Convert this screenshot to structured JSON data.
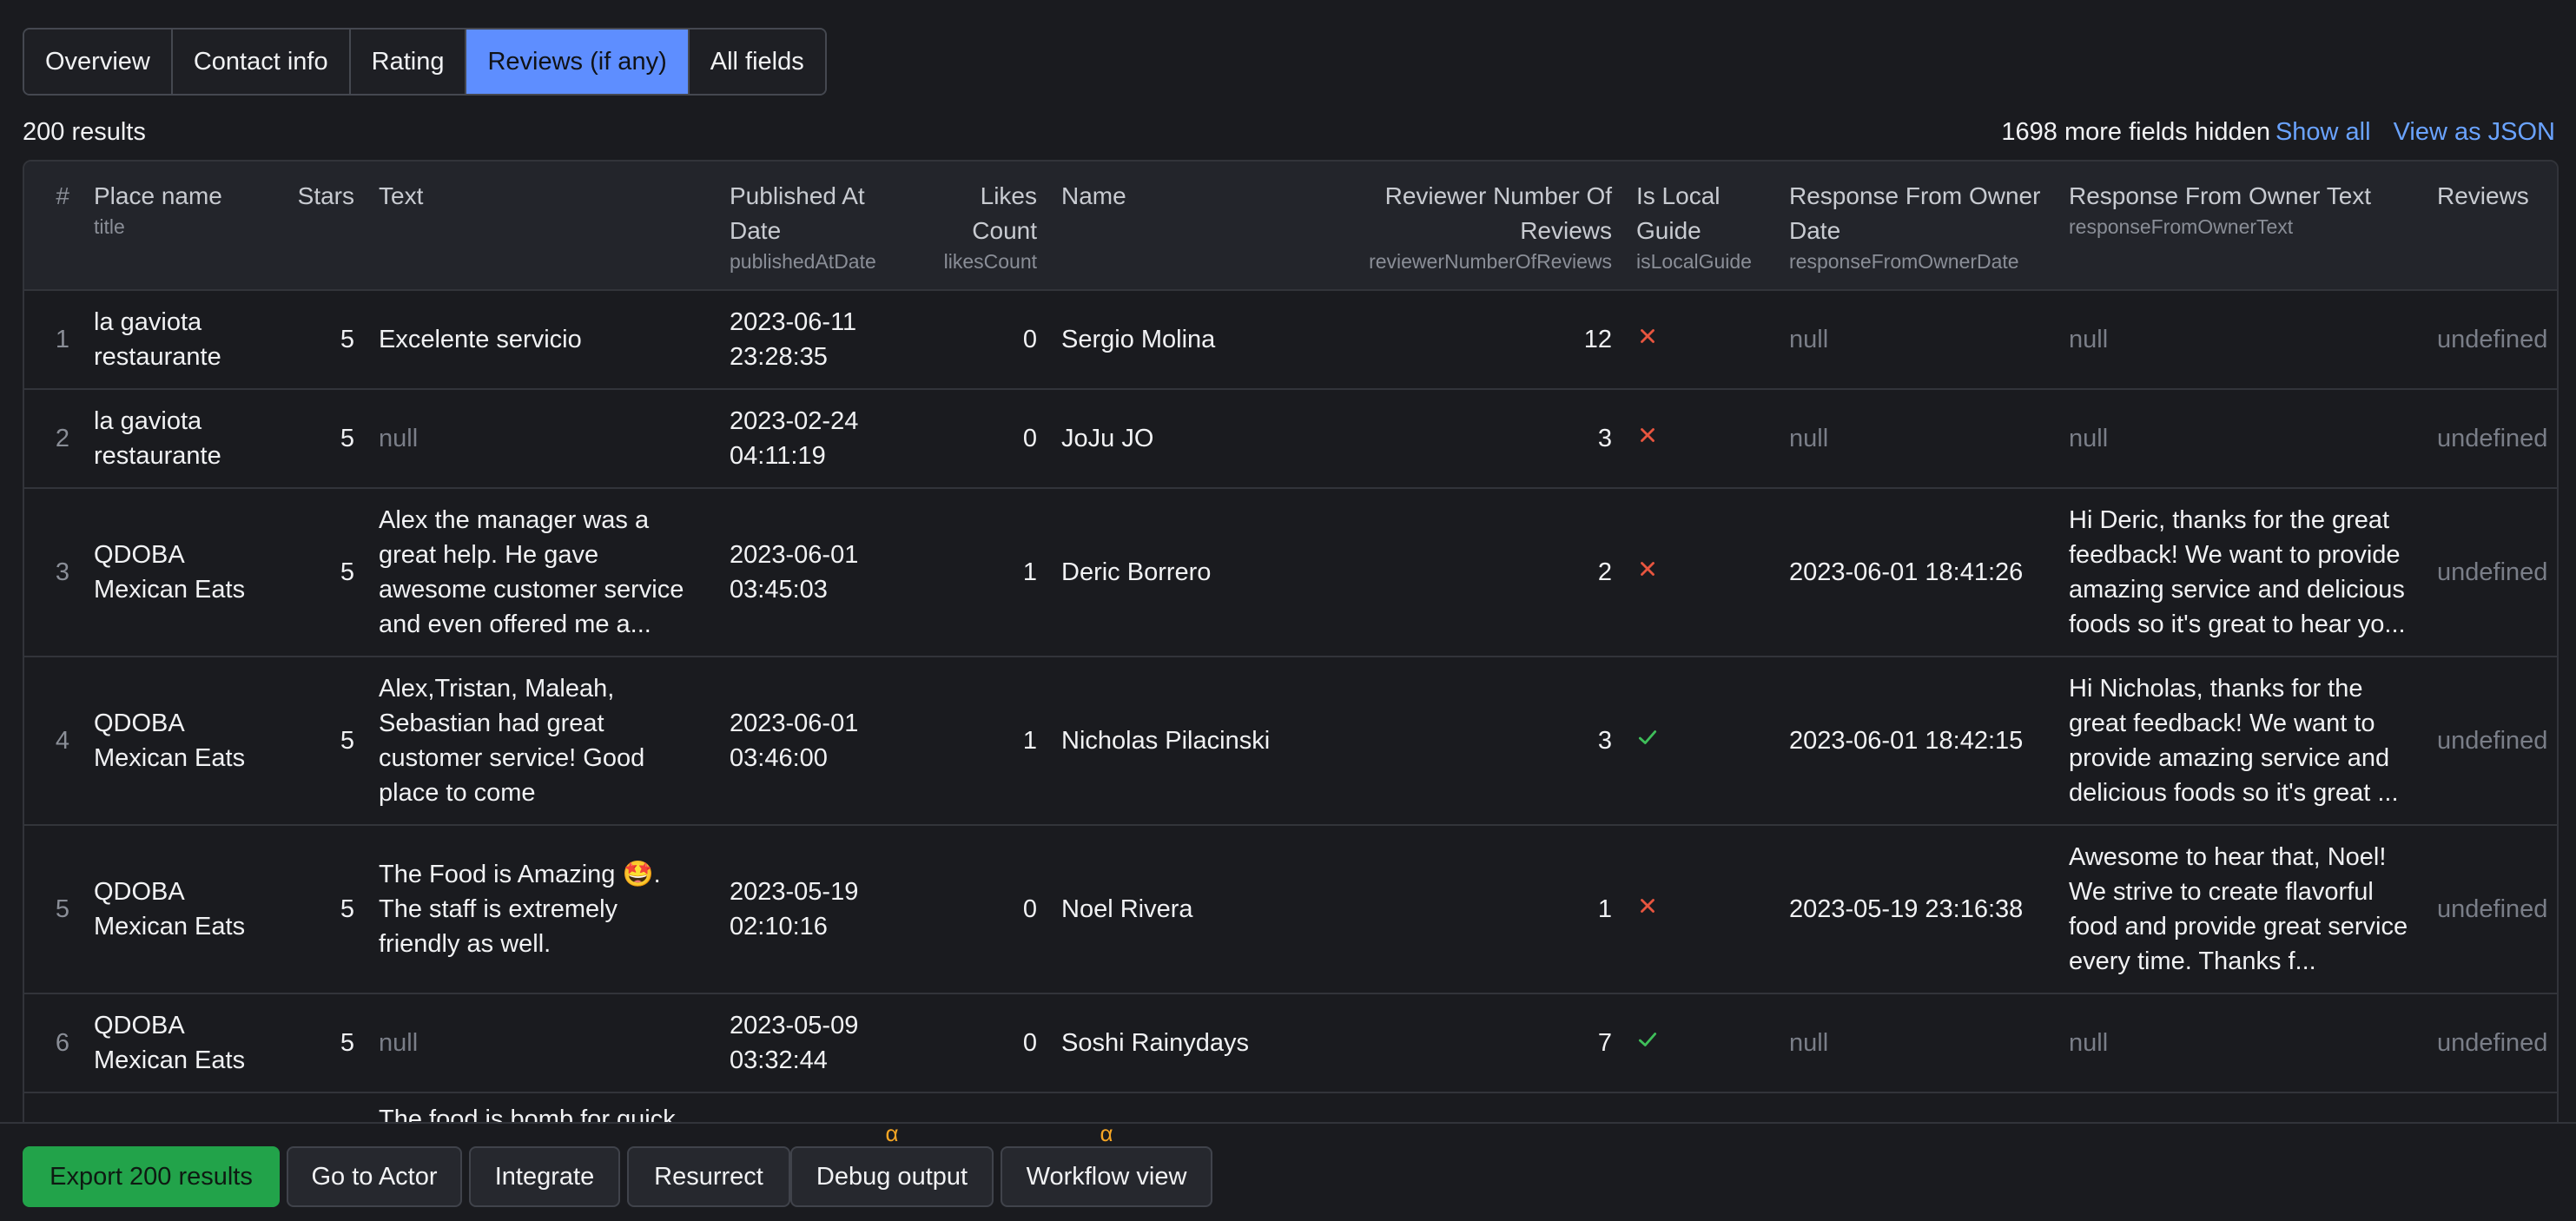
{
  "tabs": [
    {
      "label": "Overview"
    },
    {
      "label": "Contact info"
    },
    {
      "label": "Rating"
    },
    {
      "label": "Reviews (if any)"
    },
    {
      "label": "All fields"
    }
  ],
  "results_label": "200 results",
  "hidden": {
    "text": "1698 more fields hidden",
    "show_all": "Show all",
    "view_json": "View as JSON"
  },
  "columns": {
    "index": {
      "label": "#"
    },
    "place": {
      "label": "Place name",
      "sub": "title"
    },
    "stars": {
      "label": "Stars"
    },
    "text": {
      "label": "Text"
    },
    "published": {
      "label": "Published At Date",
      "sub": "publishedAtDate"
    },
    "likes": {
      "label": "Likes Count",
      "sub": "likesCount"
    },
    "name": {
      "label": "Name"
    },
    "reviewer_reviews": {
      "label": "Reviewer Number Of Reviews",
      "sub": "reviewerNumberOfReviews"
    },
    "local_guide": {
      "label": "Is Local Guide",
      "sub": "isLocalGuide"
    },
    "owner_date": {
      "label": "Response From Owner Date",
      "sub": "responseFromOwnerDate"
    },
    "owner_text": {
      "label": "Response From Owner Text",
      "sub": "responseFromOwnerText"
    },
    "reviews": {
      "label": "Reviews"
    }
  },
  "rows": [
    {
      "index": "1",
      "place": "la gaviota restaurante",
      "stars": "5",
      "text": "Excelente servicio",
      "published": "2023-06-11 23:28:35",
      "likes": "0",
      "name": "Sergio Molina",
      "reviewer_reviews": "12",
      "local_guide_icon": "cross-icon",
      "owner_date": "null",
      "owner_text": "null",
      "reviews": "undefined"
    },
    {
      "index": "2",
      "place": "la gaviota restaurante",
      "stars": "5",
      "text": "null",
      "published": "2023-02-24 04:11:19",
      "likes": "0",
      "name": "JoJu JO",
      "reviewer_reviews": "3",
      "local_guide_icon": "cross-icon",
      "owner_date": "null",
      "owner_text": "null",
      "reviews": "undefined"
    },
    {
      "index": "3",
      "place": "QDOBA Mexican Eats",
      "stars": "5",
      "text": "Alex the manager was a great help. He gave awesome customer service and even offered me a...",
      "published": "2023-06-01 03:45:03",
      "likes": "1",
      "name": "Deric Borrero",
      "reviewer_reviews": "2",
      "local_guide_icon": "cross-icon",
      "owner_date": "2023-06-01 18:41:26",
      "owner_text": "Hi Deric, thanks for the great feedback! We want to provide amazing service and delicious foods so it's great to hear yo...",
      "reviews": "undefined"
    },
    {
      "index": "4",
      "place": "QDOBA Mexican Eats",
      "stars": "5",
      "text": "Alex,Tristan, Maleah, Sebastian had great customer service! Good place to come",
      "published": "2023-06-01 03:46:00",
      "likes": "1",
      "name": "Nicholas Pilacinski",
      "reviewer_reviews": "3",
      "local_guide_icon": "check-icon",
      "owner_date": "2023-06-01 18:42:15",
      "owner_text": "Hi Nicholas, thanks for the great feedback! We want to provide amazing service and delicious foods so it's great ...",
      "reviews": "undefined"
    },
    {
      "index": "5",
      "place": "QDOBA Mexican Eats",
      "stars": "5",
      "text": "The Food is Amazing 🤩. The staff is extremely friendly as well.",
      "published": "2023-05-19 02:10:16",
      "likes": "0",
      "name": "Noel Rivera",
      "reviewer_reviews": "1",
      "local_guide_icon": "cross-icon",
      "owner_date": "2023-05-19 23:16:38",
      "owner_text": "Awesome to hear that, Noel! We strive to create flavorful food and provide great service every time. Thanks f...",
      "reviews": "undefined"
    },
    {
      "index": "6",
      "place": "QDOBA Mexican Eats",
      "stars": "5",
      "text": "null",
      "published": "2023-05-09 03:32:44",
      "likes": "0",
      "name": "Soshi Rainydays",
      "reviewer_reviews": "7",
      "local_guide_icon": "check-icon",
      "owner_date": "null",
      "owner_text": "null",
      "reviews": "undefined"
    },
    {
      "index": "",
      "place": "",
      "stars": "",
      "text": "The food is bomb for quick",
      "published": "",
      "likes": "",
      "name": "",
      "reviewer_reviews": "",
      "local_guide_icon": "",
      "owner_date": "",
      "owner_text": "",
      "reviews": ""
    }
  ],
  "colors": {
    "cross": "#e8553f",
    "check": "#3fbf5a",
    "accent": "#5e8eff",
    "primary": "#22a34a",
    "alpha": "#f5a524"
  },
  "actions": {
    "export": "Export 200 results",
    "go_to_actor": "Go to Actor",
    "integrate": "Integrate",
    "resurrect": "Resurrect",
    "debug": "Debug output",
    "workflow": "Workflow view",
    "alpha_mark": "α"
  }
}
